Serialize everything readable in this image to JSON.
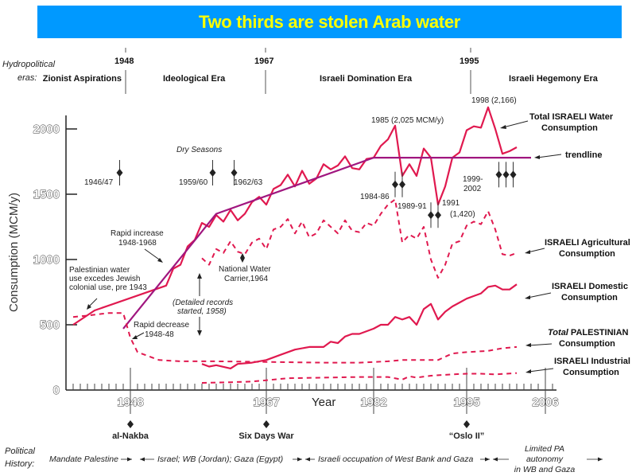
{
  "banner": {
    "title": "Two thirds are stolen Arab water"
  },
  "colors": {
    "banner_bg": "#0099ff",
    "banner_text": "#ffff00",
    "series": "#e0194f",
    "trend": "#a0167f",
    "ink": "#222222"
  },
  "eras": {
    "label_line1": "Hydropolitical",
    "label_line2": "eras:",
    "years": [
      "1948",
      "1967",
      "1995"
    ],
    "names": [
      "Zionist Aspirations",
      "Ideological Era",
      "Israeli Domination Era",
      "Israeli Hegemony Era"
    ]
  },
  "chart_data": {
    "type": "line",
    "title": "Two thirds are stolen Arab water",
    "xlabel": "Year",
    "ylabel": "Consumption (MCM/y)",
    "xlim": [
      1939,
      2006
    ],
    "ylim": [
      0,
      2000
    ],
    "x_tick_labels": [
      "1948",
      "1967",
      "1982",
      "1995",
      "2006"
    ],
    "y_tick_labels": [
      "0",
      "500",
      "1000",
      "1500",
      "2000"
    ],
    "grid": false,
    "series": [
      {
        "name": "Total ISRAELI Water Consumption",
        "style": "solid",
        "x": [
          1940,
          1943,
          1953,
          1954,
          1955,
          1956,
          1957,
          1958,
          1959,
          1960,
          1961,
          1962,
          1963,
          1964,
          1965,
          1966,
          1967,
          1968,
          1969,
          1970,
          1971,
          1972,
          1973,
          1974,
          1975,
          1976,
          1977,
          1978,
          1979,
          1980,
          1981,
          1982,
          1983,
          1984,
          1985,
          1986,
          1987,
          1988,
          1989,
          1990,
          1991,
          1992,
          1993,
          1994,
          1995,
          1996,
          1997,
          1998,
          1999,
          2000,
          2001,
          2002
        ],
        "y": [
          500,
          610,
          800,
          930,
          960,
          1100,
          1150,
          1280,
          1250,
          1340,
          1290,
          1380,
          1300,
          1350,
          1440,
          1480,
          1420,
          1540,
          1570,
          1650,
          1560,
          1680,
          1580,
          1620,
          1730,
          1690,
          1720,
          1790,
          1700,
          1690,
          1770,
          1780,
          1870,
          1920,
          2025,
          1640,
          1730,
          1640,
          1850,
          1780,
          1420,
          1560,
          1780,
          1820,
          1990,
          2020,
          2010,
          2166,
          2000,
          1810,
          1830,
          1860
        ]
      },
      {
        "name": "trendline",
        "style": "trend",
        "x": [
          1947,
          1960,
          1982,
          2004
        ],
        "y": [
          470,
          1350,
          1780,
          1780
        ]
      },
      {
        "name": "ISRAELI Agricultural Consumption",
        "style": "dashed",
        "x": [
          1958,
          1959,
          1960,
          1961,
          1962,
          1963,
          1964,
          1965,
          1966,
          1967,
          1968,
          1969,
          1970,
          1971,
          1972,
          1973,
          1974,
          1975,
          1976,
          1977,
          1978,
          1979,
          1980,
          1981,
          1982,
          1983,
          1984,
          1985,
          1986,
          1987,
          1988,
          1989,
          1990,
          1991,
          1992,
          1993,
          1994,
          1995,
          1996,
          1997,
          1998,
          1999,
          2000,
          2001,
          2002
        ],
        "y": [
          1010,
          960,
          1080,
          1050,
          1140,
          1060,
          1040,
          1130,
          1160,
          1080,
          1230,
          1250,
          1310,
          1200,
          1290,
          1170,
          1200,
          1300,
          1250,
          1200,
          1300,
          1220,
          1210,
          1280,
          1260,
          1350,
          1420,
          1460,
          1130,
          1190,
          1160,
          1250,
          1000,
          860,
          960,
          1120,
          1140,
          1260,
          1290,
          1270,
          1370,
          1230,
          1040,
          1030,
          1050
        ]
      },
      {
        "name": "ISRAELI Domestic Consumption",
        "style": "solid",
        "x": [
          1958,
          1959,
          1960,
          1962,
          1963,
          1965,
          1967,
          1969,
          1971,
          1973,
          1975,
          1976,
          1977,
          1978,
          1979,
          1980,
          1982,
          1983,
          1984,
          1985,
          1986,
          1987,
          1988,
          1989,
          1990,
          1991,
          1992,
          1993,
          1994,
          1995,
          1996,
          1997,
          1998,
          1999,
          2000,
          2001,
          2002
        ],
        "y": [
          200,
          180,
          190,
          165,
          200,
          210,
          230,
          270,
          310,
          330,
          330,
          370,
          360,
          410,
          430,
          430,
          470,
          500,
          500,
          560,
          540,
          560,
          500,
          620,
          660,
          540,
          600,
          640,
          670,
          700,
          720,
          740,
          790,
          800,
          770,
          770,
          810
        ]
      },
      {
        "name": "Total PALESTINIAN Consumption",
        "style": "dashed",
        "x": [
          1940,
          1942,
          1945,
          1947,
          1948,
          1949,
          1952,
          1955,
          1960,
          1967,
          1975,
          1980,
          1984,
          1986,
          1990,
          1991,
          1993,
          1995,
          1998,
          2000,
          2002
        ],
        "y": [
          560,
          570,
          590,
          590,
          400,
          290,
          230,
          220,
          220,
          215,
          210,
          210,
          220,
          230,
          230,
          230,
          280,
          290,
          300,
          320,
          330
        ]
      },
      {
        "name": "ISRAELI Industrial Consumption",
        "style": "dashed",
        "x": [
          1958,
          1962,
          1965,
          1967,
          1970,
          1975,
          1980,
          1984,
          1986,
          1987,
          1988,
          1990,
          1993,
          1995,
          1997,
          1999,
          2002
        ],
        "y": [
          55,
          60,
          65,
          75,
          90,
          95,
          100,
          100,
          80,
          105,
          95,
          110,
          120,
          125,
          125,
          120,
          130
        ]
      }
    ],
    "legend": [
      {
        "line1": "Total ISRAELI Water",
        "line2": "Consumption"
      },
      {
        "line1": "trendline",
        "line2": ""
      },
      {
        "line1": "ISRAELI Agricultural",
        "line2": "Consumption"
      },
      {
        "line1": "ISRAELI Domestic",
        "line2": "Consumption"
      },
      {
        "line1_italic": "Total",
        "line1": " PALESTINIAN",
        "line2": "Consumption"
      },
      {
        "line1": "ISRAELI Industrial",
        "line2": "Consumption"
      }
    ],
    "legend_placement": "right",
    "annotations": {
      "dry_seasons_title": "Dry Seasons",
      "dry_seasons": [
        {
          "label": "1946/47",
          "years": [
            1946.5
          ]
        },
        {
          "label": "1959/60",
          "years": [
            1959.5
          ]
        },
        {
          "label": "1962/63",
          "years": [
            1962.5
          ]
        },
        {
          "label": "1984-86",
          "years": [
            1985,
            1986
          ]
        },
        {
          "label": "1989-91",
          "years": [
            1990,
            1991
          ]
        },
        {
          "label_line1": "1999-",
          "label_line2": "2002",
          "years": [
            1999.5,
            2000.5,
            2001.5
          ]
        }
      ],
      "peak_1985": "1985 (2,025 MCM/y)",
      "peak_1998": "1998 (2,166)",
      "low_1991_line1": "1991",
      "low_1991_line2": "(1,420)",
      "rapid_increase_line1": "Rapid increase",
      "rapid_increase_line2": "1948-1968",
      "pal_note_line1": "Palestinian water",
      "pal_note_line2": "use excedes Jewish",
      "pal_note_line3": "colonial use, pre 1943",
      "rapid_decrease_line1": "Rapid decrease",
      "rapid_decrease_line2": "1948-48",
      "carrier_line1": "National Water",
      "carrier_line2": "Carrier,1964",
      "records_line1": "(Detailed records",
      "records_line2": "started, 1958)"
    }
  },
  "events": [
    {
      "year": 1948,
      "label": "al-Nakba"
    },
    {
      "year": 1967,
      "label": "Six Days War"
    },
    {
      "year": 1995,
      "label": "“Oslo II”"
    }
  ],
  "political_history": {
    "label_line1": "Political",
    "label_line2": "History:",
    "periods": [
      "Mandate Palestine",
      "Israel; WB (Jordan); Gaza (Egypt)",
      "Israeli occupation of West Bank and Gaza"
    ],
    "last_period_line1": "Limited PA",
    "last_period_line2": "autonomy",
    "last_period_line3": "in WB and Gaza"
  }
}
